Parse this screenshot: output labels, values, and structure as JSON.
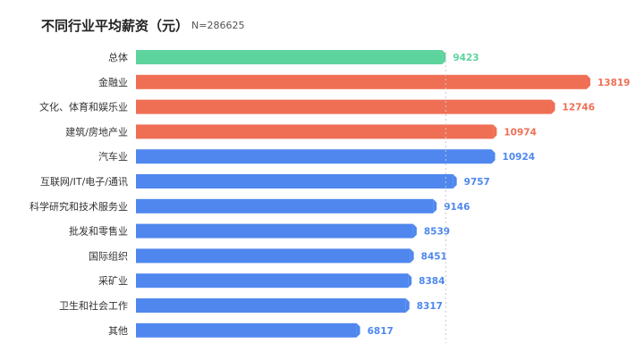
{
  "chart_data": {
    "type": "bar",
    "orientation": "horizontal",
    "title": "不同行业平均薪资（元）",
    "subtitle": "N=286625",
    "xlabel": "",
    "ylabel": "",
    "xlim": [
      0,
      14500
    ],
    "grid": false,
    "reference_line": {
      "value": 9423
    },
    "categories": [
      "总体",
      "金融业",
      "文化、体育和娱乐业",
      "建筑/房地产业",
      "汽车业",
      "互联网/IT/电子/通讯",
      "科学研究和技术服务业",
      "批发和零售业",
      "国际组织",
      "采矿业",
      "卫生和社会工作",
      "其他"
    ],
    "values": [
      9423,
      13819,
      12746,
      10974,
      10924,
      9757,
      9146,
      8539,
      8451,
      8384,
      8317,
      6817
    ],
    "value_labels": [
      "9423",
      "13819",
      "12746",
      "10974",
      "10924",
      "9757",
      "9146",
      "8539",
      "8451",
      "8384",
      "8317",
      "6817"
    ],
    "colors": [
      "#5dd39e",
      "#ef6f55",
      "#ef6f55",
      "#ef6f55",
      "#4f87ee",
      "#4f87ee",
      "#4f87ee",
      "#4f87ee",
      "#4f87ee",
      "#4f87ee",
      "#4f87ee",
      "#4f87ee"
    ]
  }
}
